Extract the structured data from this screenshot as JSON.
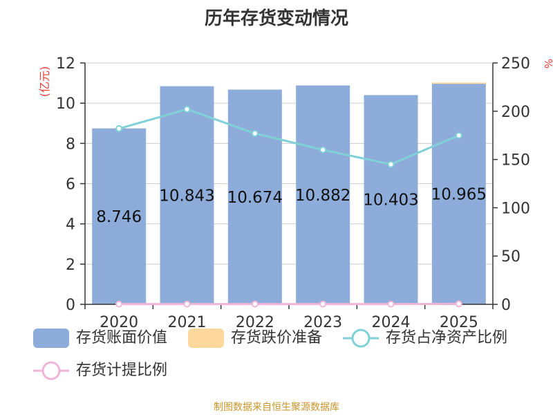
{
  "title": "历年存货变动情况",
  "source": "制图数据来自恒生聚源数据库",
  "colors": {
    "book_value": "#8eacda",
    "impairment": "#fdd89c",
    "net_asset_ratio": "#80d0d8",
    "provision_ratio": "#f0b4d8",
    "axis_left_label": "#e53935"
  },
  "chart_data": {
    "type": "bar",
    "categories": [
      "2020",
      "2021",
      "2022",
      "2023",
      "2024",
      "2025"
    ],
    "y_left": {
      "label": "(亿元)",
      "min": 0,
      "max": 12,
      "ticks": [
        0,
        2,
        4,
        6,
        8,
        10,
        12
      ]
    },
    "y_right": {
      "label": "%",
      "min": 0,
      "max": 250,
      "ticks": [
        0,
        50,
        100,
        150,
        200,
        250
      ]
    },
    "grid": true,
    "legend_position": "bottom",
    "series": [
      {
        "name": "存货账面价值",
        "type": "bar",
        "axis": "left",
        "values": [
          8.746,
          10.843,
          10.674,
          10.882,
          10.403,
          10.965
        ],
        "labels": [
          "8.746",
          "10.843",
          "10.674",
          "10.882",
          "10.403",
          "10.965"
        ]
      },
      {
        "name": "存货跌价准备",
        "type": "bar",
        "axis": "left",
        "stacked": true,
        "values": [
          0,
          0,
          0,
          0,
          0,
          0.06
        ]
      },
      {
        "name": "存货占净资产比例",
        "type": "line",
        "axis": "right",
        "values": [
          182,
          202,
          177,
          160,
          145,
          175
        ]
      },
      {
        "name": "存货计提比例",
        "type": "line",
        "axis": "right",
        "values": [
          0.3,
          0.3,
          0.3,
          0.3,
          0.3,
          0.5
        ]
      }
    ]
  }
}
